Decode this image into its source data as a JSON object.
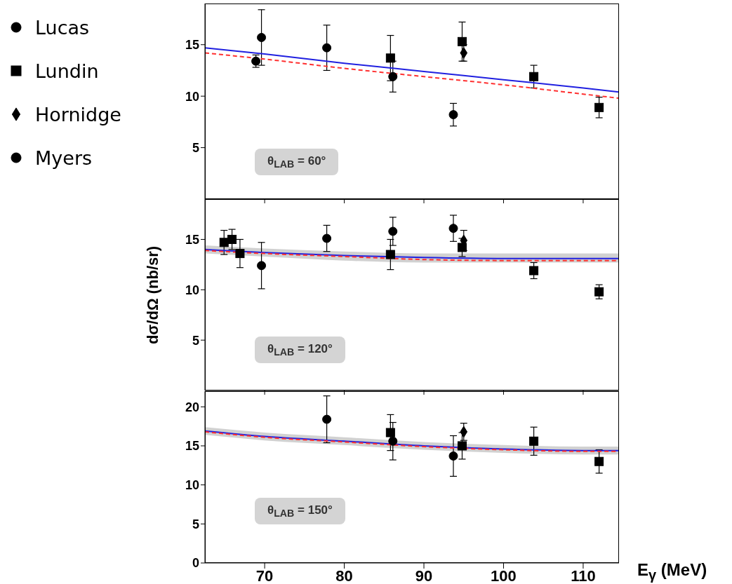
{
  "chart_data": [
    {
      "type": "scatter",
      "annotations": [
        "θ$_{LAB}$ = 60°"
      ],
      "xlim": [
        62.5,
        114.5
      ],
      "xticks": [
        70,
        80,
        90,
        100,
        110
      ],
      "ylim": [
        0,
        19
      ],
      "yticks": [
        5,
        10,
        15
      ],
      "tick_labels": "y",
      "legend": "top left",
      "series": [
        {
          "name": "Lucas",
          "marker": "circle",
          "color": "#000000",
          "x": [
            68.9
          ],
          "values": [
            13.4
          ],
          "errors": [
            0.6
          ]
        },
        {
          "name": "Lundin",
          "marker": "square",
          "color": "#000000",
          "x": [
            85.8,
            94.8,
            103.8,
            112.0
          ],
          "values": [
            13.7,
            15.3,
            11.9,
            8.9
          ],
          "errors": [
            2.2,
            1.9,
            1.1,
            1.0
          ]
        },
        {
          "name": "Hornidge",
          "marker": "diamond",
          "color": "#000000",
          "x": [
            95.0
          ],
          "values": [
            14.2
          ],
          "errors": [
            0.8
          ]
        },
        {
          "name": "Myers",
          "marker": "circle",
          "color": "#000000",
          "x": [
            69.6,
            77.8,
            86.1,
            93.7
          ],
          "values": [
            15.7,
            14.7,
            11.9,
            8.2
          ],
          "errors": [
            2.7,
            2.2,
            1.5,
            1.1
          ]
        },
        {
          "type": "line",
          "marker": "none",
          "line_style": "solid",
          "color": "#2020e0",
          "x": [
            62.5,
            70,
            80,
            90,
            100,
            110,
            114.5
          ],
          "values": [
            14.7,
            14.1,
            13.2,
            12.4,
            11.6,
            10.8,
            10.4
          ]
        },
        {
          "type": "line",
          "marker": "none",
          "line_style": "dashed",
          "color": "#ff3030",
          "x": [
            62.5,
            70,
            80,
            90,
            100,
            110,
            114.5
          ],
          "values": [
            14.2,
            13.6,
            12.7,
            11.9,
            11.1,
            10.2,
            9.8
          ]
        }
      ]
    },
    {
      "type": "scatter",
      "ylabel": "dσ/dΩ  (nb/sr)",
      "annotations": [
        "θ$_{LAB}$ = 120°"
      ],
      "xlim": [
        62.5,
        114.5
      ],
      "xticks": [
        70,
        80,
        90,
        100,
        110
      ],
      "ylim": [
        0,
        19
      ],
      "yticks": [
        5,
        10,
        15
      ],
      "tick_labels": "y",
      "series": [
        {
          "marker": "square",
          "color": "#000000",
          "x": [
            64.9,
            65.9,
            66.9
          ],
          "values": [
            14.7,
            15.0,
            13.6
          ],
          "errors": [
            1.2,
            1.0,
            1.4
          ]
        },
        {
          "marker": "square",
          "color": "#000000",
          "x": [
            85.8,
            94.8,
            103.8,
            112.0
          ],
          "values": [
            13.5,
            14.2,
            11.9,
            9.8
          ],
          "errors": [
            1.5,
            0.9,
            0.8,
            0.7
          ]
        },
        {
          "marker": "diamond",
          "color": "#000000",
          "x": [
            95.0
          ],
          "values": [
            14.9
          ],
          "errors": [
            1.0
          ]
        },
        {
          "marker": "circle",
          "color": "#000000",
          "x": [
            69.6,
            77.8,
            86.1,
            93.7
          ],
          "values": [
            12.4,
            15.1,
            15.8,
            16.1
          ],
          "errors": [
            2.3,
            1.3,
            1.4,
            1.3
          ]
        },
        {
          "type": "line",
          "marker": "none",
          "line_style": "solid",
          "color": "#2020e0",
          "x": [
            62.5,
            70,
            80,
            90,
            100,
            110,
            114.5
          ],
          "values": [
            14.0,
            13.7,
            13.4,
            13.2,
            13.1,
            13.1,
            13.1
          ],
          "lower": [
            13.6,
            13.3,
            12.9,
            12.7,
            12.7,
            12.7,
            12.7
          ],
          "upper": [
            14.4,
            14.1,
            13.8,
            13.6,
            13.6,
            13.6,
            13.6
          ]
        },
        {
          "type": "line",
          "marker": "none",
          "line_style": "dashed",
          "color": "#ff3030",
          "x": [
            62.5,
            70,
            80,
            90,
            100,
            110,
            114.5
          ],
          "values": [
            13.9,
            13.6,
            13.3,
            13.0,
            12.9,
            12.9,
            12.9
          ]
        }
      ]
    },
    {
      "type": "scatter",
      "xlabel": "E$_{γ}$  (MeV)",
      "annotations": [
        "θ$_{LAB}$ = 150°"
      ],
      "xlim": [
        62.5,
        114.5
      ],
      "xticks": [
        70,
        80,
        90,
        100,
        110
      ],
      "ylim": [
        0,
        22
      ],
      "yticks": [
        0,
        5,
        10,
        15,
        20
      ],
      "series": [
        {
          "marker": "square",
          "color": "#000000",
          "x": [
            85.8,
            94.8,
            103.8,
            112.0
          ],
          "values": [
            16.7,
            15.0,
            15.6,
            13.0
          ],
          "errors": [
            2.3,
            1.7,
            1.8,
            1.5
          ]
        },
        {
          "marker": "diamond",
          "color": "#000000",
          "x": [
            95.0
          ],
          "values": [
            16.8
          ],
          "errors": [
            1.1
          ]
        },
        {
          "marker": "circle",
          "color": "#000000",
          "x": [
            77.8,
            86.1,
            93.7
          ],
          "values": [
            18.4,
            15.6,
            13.7
          ],
          "errors": [
            3.0,
            2.4,
            2.6
          ]
        },
        {
          "type": "line",
          "marker": "none",
          "line_style": "solid",
          "color": "#2020e0",
          "x": [
            62.5,
            70,
            80,
            90,
            100,
            110,
            114.5
          ],
          "values": [
            16.9,
            16.2,
            15.6,
            15.0,
            14.6,
            14.4,
            14.4
          ],
          "lower": [
            16.4,
            15.7,
            15.1,
            14.5,
            14.1,
            13.9,
            13.9
          ],
          "upper": [
            17.4,
            16.7,
            16.1,
            15.5,
            15.1,
            14.9,
            14.9
          ]
        },
        {
          "type": "line",
          "marker": "none",
          "line_style": "dashed",
          "color": "#ff3030",
          "x": [
            62.5,
            70,
            80,
            90,
            100,
            110,
            114.5
          ],
          "values": [
            16.8,
            16.1,
            15.5,
            14.9,
            14.5,
            14.3,
            14.3
          ]
        }
      ]
    }
  ]
}
